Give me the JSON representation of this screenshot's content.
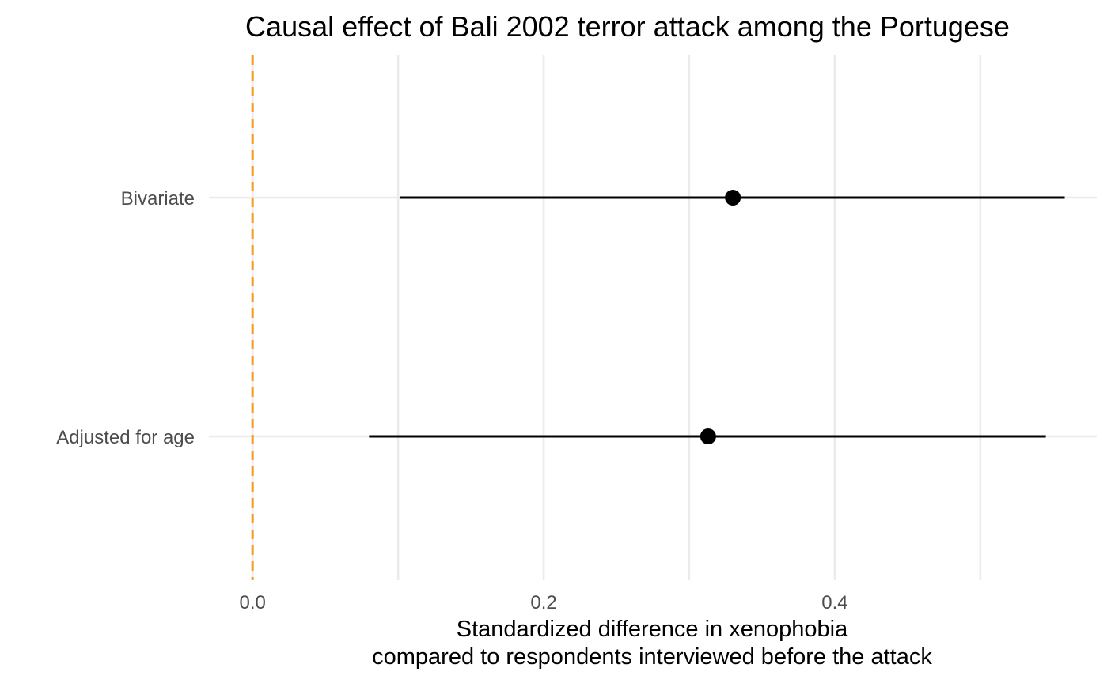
{
  "chart_data": {
    "type": "scatter",
    "subtype": "dot-and-whisker",
    "title": "Causal effect of Bali 2002 terror attack among the Portugese",
    "xlabel_line1": "Standardized difference in xenophobia",
    "xlabel_line2": "compared to respondents interviewed before the attack",
    "ylabel": "",
    "xlim": [
      -0.03,
      0.58
    ],
    "x_ticks": [
      {
        "value": 0.0,
        "label": "0.0"
      },
      {
        "value": 0.2,
        "label": "0.2"
      },
      {
        "value": 0.4,
        "label": "0.4"
      }
    ],
    "x_minor_ticks": [
      0.1,
      0.3,
      0.5
    ],
    "categories": [
      "Bivariate",
      "Adjusted for age"
    ],
    "series": [
      {
        "estimates": [
          0.33,
          0.313
        ],
        "lower": [
          0.101,
          0.08
        ],
        "upper": [
          0.558,
          0.545
        ]
      }
    ],
    "reference_line": {
      "x": 0.0,
      "style": "dashed"
    },
    "grid": true,
    "legend": "none"
  },
  "colors": {
    "reference_line": "#F39C1F",
    "points": "#000000",
    "grid": "#EBEBEB"
  }
}
